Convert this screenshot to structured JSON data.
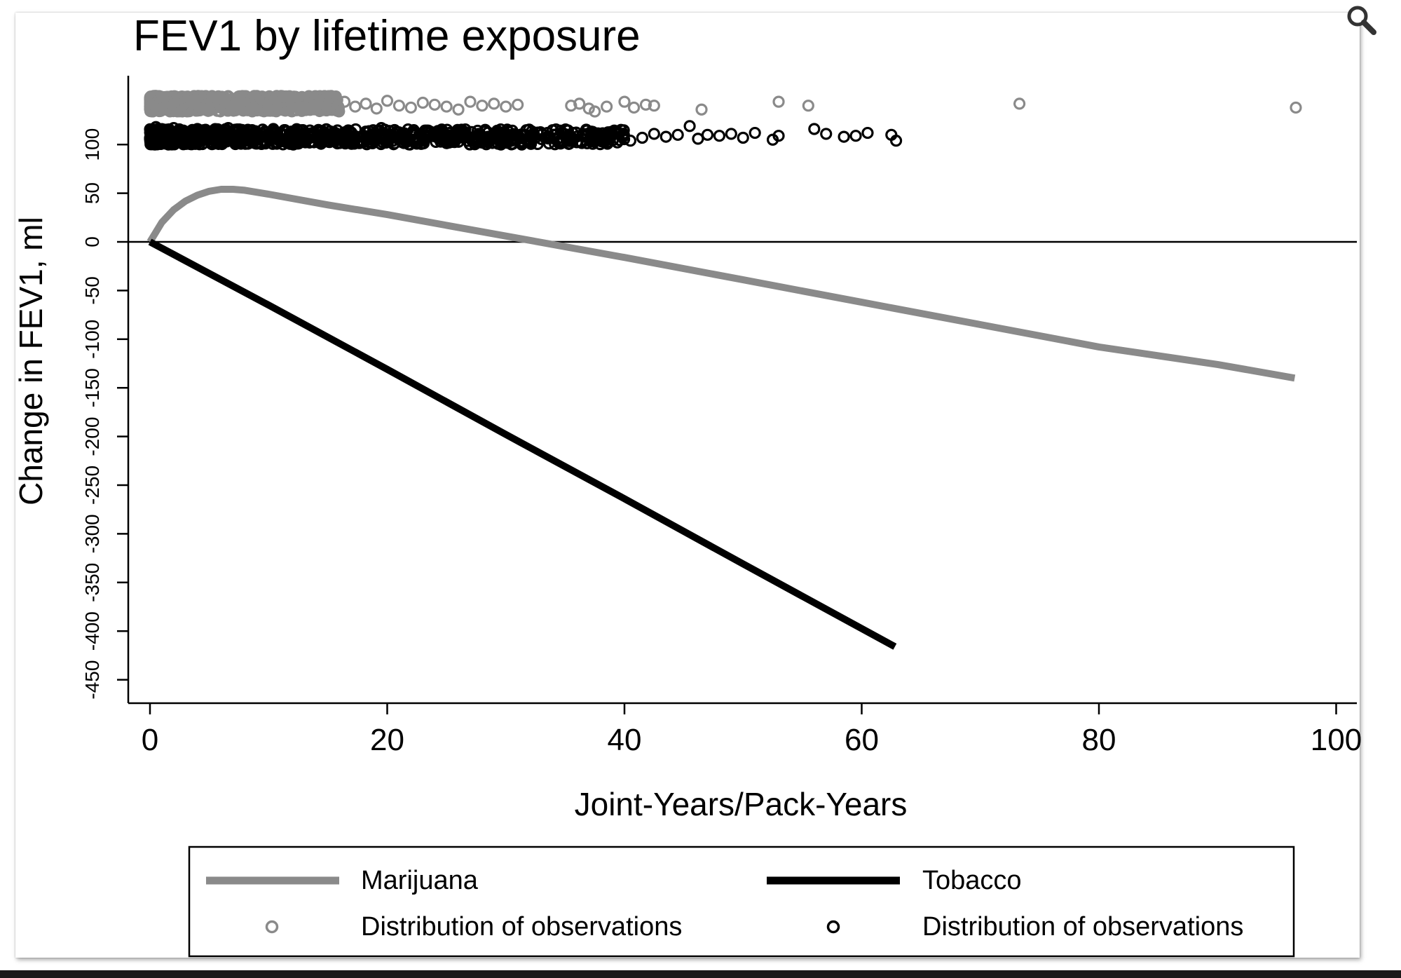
{
  "chart_data": {
    "type": "line",
    "title": "FEV1 by lifetime exposure",
    "xlabel": "Joint-Years/Pack-Years",
    "ylabel": "Change in FEV1, ml",
    "xlim": [
      0,
      102
    ],
    "ylim": [
      -474,
      174
    ],
    "x_ticks": [
      "0",
      "20",
      "40",
      "60",
      "80",
      "100"
    ],
    "x_tick_values": [
      0,
      20,
      40,
      60,
      80,
      100
    ],
    "y_ticks": [
      "100",
      "50",
      "0",
      "-50",
      "-100",
      "-150",
      "-200",
      "-250",
      "-300",
      "-350",
      "-400",
      "-450"
    ],
    "y_tick_values": [
      100,
      50,
      0,
      -50,
      -100,
      -150,
      -200,
      -250,
      -300,
      -350,
      -400,
      -450
    ],
    "grid": false,
    "zero_line": true,
    "legend_position": "bottom",
    "series": [
      {
        "name": "Marijuana",
        "kind": "line",
        "color": "#8a8a8a",
        "x": [
          0,
          1,
          2,
          3,
          4,
          5,
          6,
          7,
          8,
          10,
          15,
          20,
          25,
          30,
          35,
          40,
          50,
          60,
          70,
          80,
          90,
          96.5
        ],
        "y": [
          0,
          20,
          33,
          42,
          48,
          52,
          54,
          54,
          53,
          49,
          38,
          28,
          17,
          6,
          -5,
          -16,
          -39,
          -62,
          -85,
          -108,
          -126,
          -140
        ]
      },
      {
        "name": "Tobacco",
        "kind": "line",
        "color": "#000000",
        "x": [
          0,
          10,
          20,
          30,
          40,
          50,
          62.8
        ],
        "y": [
          0,
          -65,
          -131,
          -198,
          -264,
          -331,
          -416
        ]
      },
      {
        "name": "Distribution of observations",
        "kind": "scatter",
        "marker": "hollow-circle",
        "color": "#8a8a8a",
        "y_band": 142,
        "x": [
          0.1,
          0.3,
          0.5,
          0.8,
          1.0,
          1.3,
          1.6,
          2.0,
          2.4,
          2.8,
          3.2,
          3.6,
          4.0,
          4.5,
          5.0,
          5.5,
          6.0,
          6.5,
          7.0,
          7.5,
          8.0,
          8.6,
          9.2,
          9.8,
          10.4,
          11.0,
          11.7,
          12.4,
          13.1,
          13.9,
          14.7,
          15.5,
          16.4,
          17.3,
          18.2,
          19.1,
          20.0,
          21.0,
          22.0,
          23.0,
          24.0,
          25.0,
          26.0,
          27.0,
          28.0,
          29.0,
          30.0,
          31.0,
          35.5,
          36.2,
          37.0,
          37.5,
          38.5,
          40.0,
          40.8,
          41.8,
          42.5,
          46.5,
          53.0,
          55.5,
          73.3,
          96.6
        ],
        "y": [
          145,
          138,
          148,
          140,
          144,
          136,
          147,
          141,
          139,
          146,
          137,
          143,
          148,
          140,
          135,
          145,
          142,
          138,
          147,
          141,
          136,
          144,
          139,
          146,
          142,
          137,
          145,
          140,
          138,
          143,
          141,
          136,
          144,
          139,
          142,
          137,
          145,
          140,
          138,
          143,
          141,
          139,
          136,
          144,
          140,
          142,
          139,
          141,
          140,
          142,
          137,
          134,
          139,
          144,
          138,
          141,
          140,
          136,
          144,
          140,
          142,
          138
        ]
      },
      {
        "name": "Distribution of observations",
        "kind": "scatter",
        "marker": "hollow-circle",
        "color": "#000000",
        "y_band": 108,
        "x": [
          0.1,
          0.3,
          0.5,
          0.8,
          1.0,
          1.3,
          1.6,
          2.0,
          2.4,
          2.8,
          3.2,
          3.6,
          4.0,
          4.5,
          5.0,
          5.5,
          6.0,
          6.6,
          7.2,
          7.8,
          8.4,
          9.0,
          9.7,
          10.4,
          11.1,
          11.8,
          12.6,
          13.4,
          14.2,
          15.0,
          15.9,
          16.8,
          17.7,
          18.6,
          19.5,
          20.5,
          21.5,
          22.5,
          23.5,
          24.5,
          25.5,
          26.5,
          27.5,
          28.5,
          29.5,
          30.5,
          31.5,
          32.5,
          33.5,
          34.5,
          35.5,
          36.5,
          37.5,
          38.5,
          39.5,
          40.5,
          41.5,
          42.5,
          43.5,
          44.5,
          45.5,
          46.2,
          47.0,
          48.0,
          49.0,
          50.0,
          51.0,
          52.5,
          53.0,
          56.0,
          57.0,
          58.5,
          59.5,
          60.5,
          62.5,
          62.9
        ],
        "y": [
          112,
          104,
          118,
          108,
          115,
          101,
          110,
          117,
          105,
          113,
          102,
          109,
          116,
          106,
          112,
          103,
          111,
          117,
          104,
          109,
          114,
          101,
          108,
          116,
          105,
          112,
          103,
          110,
          115,
          106,
          109,
          113,
          102,
          108,
          117,
          104,
          111,
          106,
          114,
          103,
          109,
          112,
          105,
          108,
          111,
          104,
          110,
          107,
          112,
          103,
          108,
          110,
          105,
          109,
          112,
          104,
          107,
          111,
          108,
          110,
          119,
          106,
          110,
          109,
          111,
          107,
          112,
          105,
          109,
          116,
          111,
          108,
          109,
          112,
          110,
          104
        ]
      }
    ]
  },
  "legend": {
    "items": [
      {
        "label": "Marijuana",
        "symbol": "line",
        "color": "#8a8a8a"
      },
      {
        "label": "Tobacco",
        "symbol": "line",
        "color": "#000000"
      },
      {
        "label": "Distribution of observations",
        "symbol": "hollow-circle",
        "color": "#8a8a8a"
      },
      {
        "label": "Distribution of observations",
        "symbol": "hollow-circle",
        "color": "#000000"
      }
    ]
  },
  "toolbar": {
    "zoom_icon": "magnifier-icon"
  }
}
